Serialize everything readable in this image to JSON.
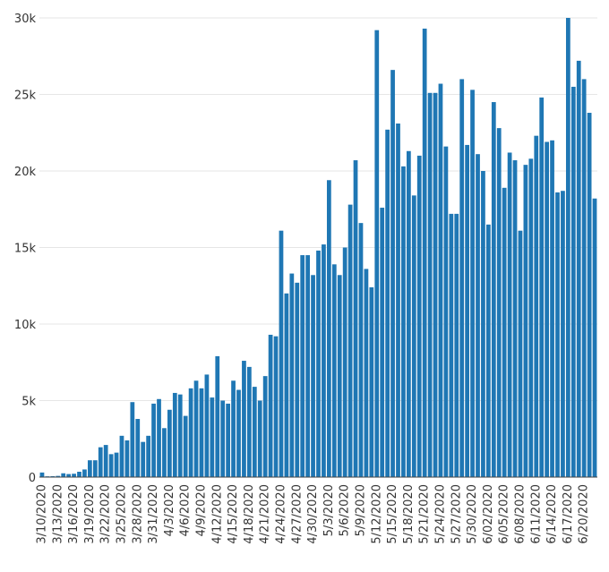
{
  "chart_data": {
    "type": "bar",
    "title": "",
    "xlabel": "",
    "ylabel": "",
    "grid": true,
    "bar_color": "#1f77b4",
    "ylim": [
      0,
      30000
    ],
    "y_ticks": [
      {
        "value": 0,
        "label": "0"
      },
      {
        "value": 5000,
        "label": "5k"
      },
      {
        "value": 10000,
        "label": "10k"
      },
      {
        "value": 15000,
        "label": "15k"
      },
      {
        "value": 20000,
        "label": "20k"
      },
      {
        "value": 25000,
        "label": "25k"
      },
      {
        "value": 30000,
        "label": "30k"
      }
    ],
    "x_tick_labels": [
      "3/10/2020",
      "3/13/2020",
      "3/16/2020",
      "3/19/2020",
      "3/22/2020",
      "3/25/2020",
      "3/28/2020",
      "3/31/2020",
      "4/3/2020",
      "4/6/2020",
      "4/9/2020",
      "4/12/2020",
      "4/15/2020",
      "4/18/2020",
      "4/21/2020",
      "4/24/2020",
      "4/27/2020",
      "4/30/2020",
      "5/3/2020",
      "5/6/2020",
      "5/9/2020",
      "5/12/2020",
      "5/15/2020",
      "5/18/2020",
      "5/21/2020",
      "5/24/2020",
      "5/27/2020",
      "5/30/2020",
      "6/02/2020",
      "6/05/2020",
      "6/08/2020",
      "6/11/2020",
      "6/14/2020",
      "6/17/2020",
      "6/20/2020"
    ],
    "values": [
      300,
      50,
      60,
      80,
      250,
      200,
      220,
      350,
      500,
      1100,
      1100,
      1950,
      2100,
      1500,
      1600,
      2700,
      2400,
      4900,
      3800,
      2300,
      2700,
      4800,
      5100,
      3200,
      4400,
      5500,
      5400,
      4000,
      5800,
      6300,
      5800,
      6700,
      5200,
      7900,
      5000,
      4800,
      6300,
      5700,
      7600,
      7200,
      5900,
      5000,
      6600,
      9300,
      9200,
      16100,
      12000,
      13300,
      12700,
      14500,
      14500,
      13200,
      14800,
      15200,
      19400,
      13900,
      13200,
      15000,
      17800,
      20700,
      16600,
      13600,
      12400,
      29200,
      17600,
      22700,
      26600,
      23100,
      20300,
      21300,
      18400,
      21000,
      29300,
      25100,
      25100,
      25700,
      21600,
      17200,
      17200,
      26000,
      21700,
      25300,
      21100,
      20000,
      16500,
      24500,
      22800,
      18900,
      21200,
      20700,
      16100,
      20400,
      20800,
      22300,
      24800,
      21900,
      22000,
      18600,
      18700,
      30000,
      25500,
      27200,
      26000,
      23800,
      18200
    ]
  }
}
